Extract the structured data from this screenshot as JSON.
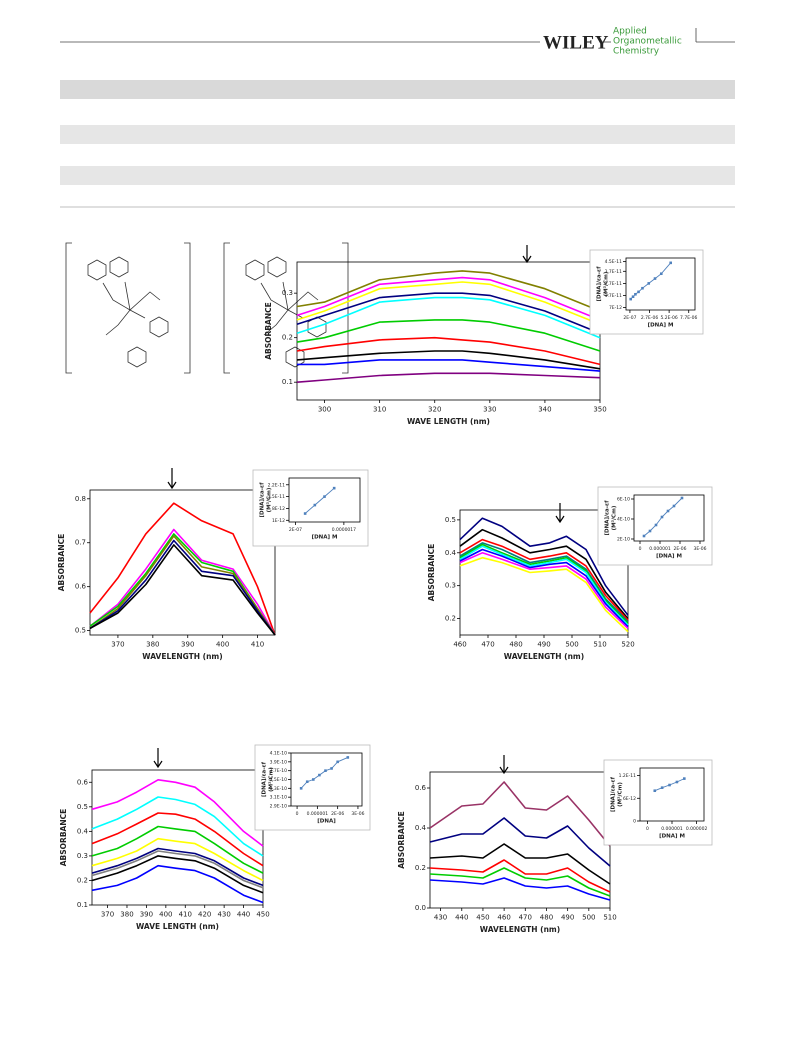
{
  "header": {
    "publisher": "WILEY",
    "journal": [
      "Applied",
      "Organometallic",
      "Chemistry"
    ]
  },
  "chart_data": [
    {
      "type": "line",
      "y_label": "ABSORBANCE",
      "x_label": "WAVE LENGTH (nm)",
      "x": [
        295,
        300,
        310,
        320,
        325,
        330,
        340,
        350
      ],
      "xlim": [
        295,
        350
      ],
      "xticks": [
        300,
        310,
        320,
        330,
        340,
        350
      ],
      "ylim": [
        0.06,
        0.37
      ],
      "yticks": [
        0.1,
        0.2,
        0.3
      ],
      "series": [
        {
          "color": "#808000",
          "values": [
            0.27,
            0.28,
            0.33,
            0.345,
            0.35,
            0.345,
            0.31,
            0.26
          ]
        },
        {
          "color": "#ff00ff",
          "values": [
            0.25,
            0.27,
            0.32,
            0.33,
            0.335,
            0.33,
            0.29,
            0.24
          ]
        },
        {
          "color": "#ffff00",
          "values": [
            0.24,
            0.26,
            0.31,
            0.32,
            0.325,
            0.32,
            0.28,
            0.23
          ]
        },
        {
          "color": "#000080",
          "values": [
            0.23,
            0.25,
            0.29,
            0.3,
            0.3,
            0.295,
            0.26,
            0.21
          ]
        },
        {
          "color": "#00ffff",
          "values": [
            0.21,
            0.23,
            0.28,
            0.29,
            0.29,
            0.285,
            0.25,
            0.2
          ]
        },
        {
          "color": "#00cc00",
          "values": [
            0.19,
            0.2,
            0.235,
            0.24,
            0.24,
            0.235,
            0.21,
            0.17
          ]
        },
        {
          "color": "#ff0000",
          "values": [
            0.17,
            0.18,
            0.195,
            0.2,
            0.195,
            0.19,
            0.17,
            0.14
          ]
        },
        {
          "color": "#000000",
          "values": [
            0.15,
            0.155,
            0.165,
            0.17,
            0.17,
            0.165,
            0.15,
            0.13
          ]
        },
        {
          "color": "#0000ff",
          "values": [
            0.14,
            0.14,
            0.15,
            0.15,
            0.15,
            0.145,
            0.135,
            0.125
          ]
        },
        {
          "color": "#800080",
          "values": [
            0.1,
            0.105,
            0.115,
            0.12,
            0.12,
            0.12,
            0.115,
            0.11
          ]
        }
      ],
      "inset": {
        "type": "scatter",
        "y_label": "[DNA]/εa-εf",
        "y_unit": "(M²/Cm)",
        "x_label": "[DNA] M",
        "color": "#4f81bd",
        "x": [
          3e-07,
          6e-07,
          9e-07,
          1.3e-06,
          1.8e-06,
          2.6e-06,
          3.4e-06,
          4.2e-06,
          5.4e-06
        ],
        "values": [
          1.4e-11,
          1.6e-11,
          1.8e-11,
          2e-11,
          2.3e-11,
          2.7e-11,
          3.1e-11,
          3.5e-11,
          4.4e-11
        ],
        "xlim": [
          -3e-07,
          8.5e-06
        ],
        "xticks": [
          {
            "value": 2e-07,
            "label": "2E-07"
          },
          {
            "value": 2.7e-06,
            "label": "2.7E-06"
          },
          {
            "value": 5.2e-06,
            "label": "5.2E-06"
          },
          {
            "value": 7.7e-06,
            "label": "7.7E-06"
          }
        ],
        "ylim": [
          5e-12,
          4.8e-11
        ],
        "yticks": [
          {
            "value": 7e-12,
            "label": "7E-12"
          },
          {
            "value": 1.7e-11,
            "label": "1.7E-11"
          },
          {
            "value": 2.7e-11,
            "label": "2.7E-11"
          },
          {
            "value": 3.7e-11,
            "label": "3.7E-11"
          },
          {
            "value": 4.5e-11,
            "label": "4.5E-11"
          }
        ]
      }
    },
    {
      "type": "line",
      "y_label": "ABSORBANCE",
      "x_label": "WAVELENGTH (nm)",
      "x": [
        362,
        370,
        378,
        386,
        394,
        403,
        410,
        415
      ],
      "xlim": [
        362,
        415
      ],
      "xticks": [
        370,
        380,
        390,
        400,
        410
      ],
      "ylim": [
        0.49,
        0.82
      ],
      "yticks": [
        0.5,
        0.6,
        0.7,
        0.8
      ],
      "series": [
        {
          "color": "#ff0000",
          "values": [
            0.54,
            0.62,
            0.72,
            0.79,
            0.75,
            0.72,
            0.6,
            0.49
          ]
        },
        {
          "color": "#ff00ff",
          "values": [
            0.51,
            0.56,
            0.64,
            0.73,
            0.66,
            0.64,
            0.56,
            0.49
          ]
        },
        {
          "color": "#00cc00",
          "values": [
            0.51,
            0.555,
            0.63,
            0.72,
            0.655,
            0.635,
            0.55,
            0.49
          ]
        },
        {
          "color": "#808000",
          "values": [
            0.505,
            0.55,
            0.625,
            0.715,
            0.645,
            0.63,
            0.55,
            0.49
          ]
        },
        {
          "color": "#000080",
          "values": [
            0.505,
            0.545,
            0.615,
            0.705,
            0.635,
            0.625,
            0.545,
            0.49
          ]
        },
        {
          "color": "#000000",
          "values": [
            0.505,
            0.54,
            0.605,
            0.695,
            0.625,
            0.615,
            0.54,
            0.49
          ]
        }
      ],
      "inset": {
        "type": "scatter",
        "y_label": "[DNA]/εa-εf",
        "y_unit": "(M²/Cm)",
        "x_label": "[DNA] M",
        "color": "#4f81bd",
        "x": [
          5e-07,
          8e-07,
          1.1e-06,
          1.4e-06
        ],
        "values": [
          5e-12,
          1e-11,
          1.5e-11,
          2e-11
        ],
        "xlim": [
          0,
          2.2e-06
        ],
        "xticks": [
          {
            "value": 2e-07,
            "label": "2E-07"
          },
          {
            "value": 1.7e-06,
            "label": "0.0000017"
          }
        ],
        "ylim": [
          0,
          2.6e-11
        ],
        "yticks": [
          {
            "value": 1e-12,
            "label": "1E-12"
          },
          {
            "value": 8e-12,
            "label": "8E-12"
          },
          {
            "value": 1.5e-11,
            "label": "1.5E-11"
          },
          {
            "value": 2.2e-11,
            "label": "2.2E-11"
          }
        ]
      }
    },
    {
      "type": "line",
      "y_label": "ABSORBANCE",
      "x_label": "WAVELENGTH (nm)",
      "x": [
        460,
        468,
        475,
        485,
        492,
        498,
        505,
        512,
        520
      ],
      "xlim": [
        460,
        520
      ],
      "xticks": [
        460,
        470,
        480,
        490,
        500,
        510,
        520
      ],
      "ylim": [
        0.15,
        0.53
      ],
      "yticks": [
        0.2,
        0.3,
        0.4,
        0.5
      ],
      "series": [
        {
          "color": "#000080",
          "values": [
            0.44,
            0.505,
            0.48,
            0.42,
            0.43,
            0.45,
            0.41,
            0.3,
            0.21
          ]
        },
        {
          "color": "#000000",
          "values": [
            0.42,
            0.47,
            0.445,
            0.4,
            0.41,
            0.42,
            0.38,
            0.28,
            0.2
          ]
        },
        {
          "color": "#ff0000",
          "values": [
            0.4,
            0.44,
            0.42,
            0.38,
            0.39,
            0.4,
            0.36,
            0.27,
            0.195
          ]
        },
        {
          "color": "#008080",
          "values": [
            0.39,
            0.43,
            0.41,
            0.37,
            0.38,
            0.39,
            0.35,
            0.26,
            0.19
          ]
        },
        {
          "color": "#00cc00",
          "values": [
            0.385,
            0.425,
            0.4,
            0.365,
            0.375,
            0.385,
            0.345,
            0.255,
            0.185
          ]
        },
        {
          "color": "#00ffff",
          "values": [
            0.38,
            0.42,
            0.395,
            0.36,
            0.37,
            0.38,
            0.34,
            0.25,
            0.18
          ]
        },
        {
          "color": "#0000ff",
          "values": [
            0.375,
            0.41,
            0.39,
            0.355,
            0.365,
            0.37,
            0.33,
            0.245,
            0.175
          ]
        },
        {
          "color": "#ff00ff",
          "values": [
            0.37,
            0.4,
            0.38,
            0.35,
            0.355,
            0.36,
            0.32,
            0.235,
            0.17
          ]
        },
        {
          "color": "#ffff00",
          "values": [
            0.36,
            0.385,
            0.37,
            0.34,
            0.345,
            0.35,
            0.31,
            0.225,
            0.16
          ]
        }
      ],
      "inset": {
        "type": "scatter",
        "y_label": "[DNA]/εa-εf",
        "y_unit": "(M²/Cm)",
        "x_label": "[DNA]  M",
        "color": "#4f81bd",
        "x": [
          2e-07,
          5e-07,
          8e-07,
          1.1e-06,
          1.4e-06,
          1.7e-06,
          2.1e-06
        ],
        "values": [
          2.3e-10,
          2.8e-10,
          3.4e-10,
          4.2e-10,
          4.8e-10,
          5.3e-10,
          6.1e-10
        ],
        "xlim": [
          -3e-07,
          3.2e-06
        ],
        "xticks": [
          0,
          {
            "value": 1e-06,
            "label": "0.000001"
          },
          {
            "value": 2e-06,
            "label": "2E-06"
          },
          {
            "value": 3e-06,
            "label": "3E-06"
          }
        ],
        "ylim": [
          1.8e-10,
          6.4e-10
        ],
        "yticks": [
          {
            "value": 2e-10,
            "label": "2E-10"
          },
          {
            "value": 4e-10,
            "label": "4E-10"
          },
          {
            "value": 6e-10,
            "label": "6E-10"
          }
        ]
      }
    },
    {
      "type": "line",
      "y_label": "ABSORBANCE",
      "x_label": "WAVE LENGTH (nm)",
      "x": [
        362,
        375,
        385,
        396,
        405,
        415,
        425,
        440,
        450
      ],
      "xlim": [
        362,
        450
      ],
      "xticks": [
        370,
        380,
        390,
        400,
        410,
        420,
        430,
        440,
        450
      ],
      "ylim": [
        0.1,
        0.65
      ],
      "yticks": [
        0.1,
        0.2,
        0.3,
        0.4,
        0.5,
        0.6
      ],
      "series": [
        {
          "color": "#ff00ff",
          "values": [
            0.49,
            0.52,
            0.56,
            0.61,
            0.6,
            0.58,
            0.52,
            0.4,
            0.34
          ]
        },
        {
          "color": "#00ffff",
          "values": [
            0.41,
            0.45,
            0.49,
            0.54,
            0.53,
            0.51,
            0.46,
            0.35,
            0.3
          ]
        },
        {
          "color": "#ff0000",
          "values": [
            0.35,
            0.39,
            0.43,
            0.475,
            0.47,
            0.45,
            0.4,
            0.31,
            0.26
          ]
        },
        {
          "color": "#00cc00",
          "values": [
            0.3,
            0.33,
            0.37,
            0.42,
            0.41,
            0.4,
            0.35,
            0.27,
            0.23
          ]
        },
        {
          "color": "#ffff00",
          "values": [
            0.26,
            0.29,
            0.32,
            0.37,
            0.36,
            0.35,
            0.31,
            0.24,
            0.2
          ]
        },
        {
          "color": "#000080",
          "values": [
            0.23,
            0.26,
            0.29,
            0.33,
            0.32,
            0.31,
            0.28,
            0.21,
            0.18
          ]
        },
        {
          "color": "#808080",
          "values": [
            0.22,
            0.25,
            0.28,
            0.32,
            0.31,
            0.3,
            0.27,
            0.2,
            0.17
          ]
        },
        {
          "color": "#000000",
          "values": [
            0.2,
            0.23,
            0.26,
            0.3,
            0.29,
            0.28,
            0.25,
            0.18,
            0.15
          ]
        },
        {
          "color": "#0000ff",
          "values": [
            0.16,
            0.18,
            0.21,
            0.26,
            0.25,
            0.24,
            0.21,
            0.14,
            0.11
          ]
        }
      ],
      "inset": {
        "type": "scatter",
        "y_label": "[DNA]/εa-εf",
        "y_unit": "(M²/Cm)",
        "x_label": "[DNA]",
        "color": "#4f81bd",
        "x": [
          2e-07,
          5e-07,
          8e-07,
          1.1e-06,
          1.4e-06,
          1.7e-06,
          2e-06,
          2.5e-06
        ],
        "values": [
          3.3e-10,
          3.45e-10,
          3.5e-10,
          3.6e-10,
          3.7e-10,
          3.75e-10,
          3.9e-10,
          4e-10
        ],
        "xlim": [
          -3e-07,
          3.2e-06
        ],
        "xticks": [
          0,
          {
            "value": 1e-06,
            "label": "0.000001"
          },
          {
            "value": 2e-06,
            "label": "2E-06"
          },
          {
            "value": 3e-06,
            "label": "3E-06"
          }
        ],
        "ylim": [
          2.9e-10,
          4.1e-10
        ],
        "yticks": [
          {
            "value": 2.9e-10,
            "label": "2.9E-10"
          },
          {
            "value": 3.1e-10,
            "label": "3.1E-10"
          },
          {
            "value": 3.3e-10,
            "label": "3.3E-10"
          },
          {
            "value": 3.5e-10,
            "label": "3.5E-10"
          },
          {
            "value": 3.7e-10,
            "label": "3.7E-10"
          },
          {
            "value": 3.9e-10,
            "label": "3.9E-10"
          },
          {
            "value": 4.1e-10,
            "label": "4.1E-10"
          }
        ]
      }
    },
    {
      "type": "line",
      "y_label": "ABSORBANCE",
      "x_label": "WAVELENGTH (nm)",
      "x": [
        425,
        440,
        450,
        460,
        470,
        480,
        490,
        500,
        510
      ],
      "xlim": [
        425,
        510
      ],
      "xticks": [
        430,
        440,
        450,
        460,
        470,
        480,
        490,
        500,
        510
      ],
      "ylim": [
        0,
        0.68
      ],
      "yticks": [
        {
          "value": 0,
          "label": "0.0"
        },
        0.2,
        0.4,
        0.6
      ],
      "series": [
        {
          "color": "#993366",
          "values": [
            0.4,
            0.51,
            0.52,
            0.63,
            0.5,
            0.49,
            0.56,
            0.44,
            0.31
          ]
        },
        {
          "color": "#000080",
          "values": [
            0.33,
            0.37,
            0.37,
            0.45,
            0.36,
            0.35,
            0.41,
            0.3,
            0.21
          ]
        },
        {
          "color": "#000000",
          "values": [
            0.25,
            0.26,
            0.25,
            0.32,
            0.25,
            0.25,
            0.27,
            0.19,
            0.12
          ]
        },
        {
          "color": "#ff0000",
          "values": [
            0.2,
            0.19,
            0.18,
            0.24,
            0.17,
            0.17,
            0.2,
            0.13,
            0.08
          ]
        },
        {
          "color": "#00cc00",
          "values": [
            0.17,
            0.16,
            0.15,
            0.2,
            0.15,
            0.14,
            0.16,
            0.1,
            0.06
          ]
        },
        {
          "color": "#0000ff",
          "values": [
            0.14,
            0.13,
            0.12,
            0.15,
            0.11,
            0.1,
            0.11,
            0.07,
            0.04
          ]
        }
      ],
      "inset": {
        "type": "scatter",
        "y_label": "[DNA]/εa-εf",
        "y_unit": "(M²/Cm)",
        "x_label": "[DNA]  M",
        "color": "#4f81bd",
        "x": [
          3e-07,
          6e-07,
          9e-07,
          1.2e-06,
          1.5e-06
        ],
        "values": [
          8e-12,
          8.8e-12,
          9.5e-12,
          1.03e-11,
          1.12e-11
        ],
        "xlim": [
          -3e-07,
          2.3e-06
        ],
        "xticks": [
          0,
          {
            "value": 1e-06,
            "label": "0.000001"
          },
          {
            "value": 2e-06,
            "label": "0.000002"
          }
        ],
        "ylim": [
          0,
          1.4e-11
        ],
        "yticks": [
          0,
          {
            "value": 6e-12,
            "label": "6E-12"
          },
          {
            "value": 1.2e-11,
            "label": "1.2E-11"
          }
        ]
      }
    }
  ]
}
